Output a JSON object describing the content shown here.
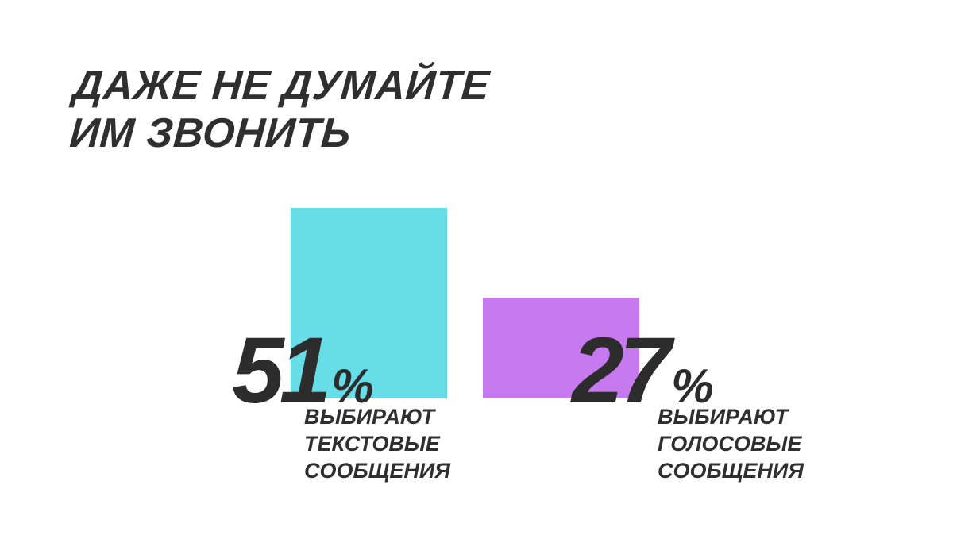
{
  "title_lines": [
    "ДАЖЕ НЕ ДУМАЙТЕ",
    "ИМ ЗВОНИТЬ"
  ],
  "chart_data": {
    "type": "bar",
    "categories": [
      "ВЫБИРАЮТ ТЕКСТОВЫЕ СООБЩЕНИЯ",
      "ВЫБИРАЮТ ГОЛОСОВЫЕ СООБЩЕНИЯ"
    ],
    "values": [
      51,
      27
    ],
    "unit": "%",
    "colors": [
      "#66dde7",
      "#c779ef"
    ],
    "value_labels": [
      {
        "number": "51",
        "suffix": "%"
      },
      {
        "number": "27",
        "suffix": "%"
      }
    ],
    "captions": [
      [
        "ВЫБИРАЮТ",
        "ТЕКСТОВЫЕ",
        "СООБЩЕНИЯ"
      ],
      [
        "ВЫБИРАЮТ",
        "ГОЛОСОВЫЕ",
        "СООБЩЕНИЯ"
      ]
    ]
  }
}
